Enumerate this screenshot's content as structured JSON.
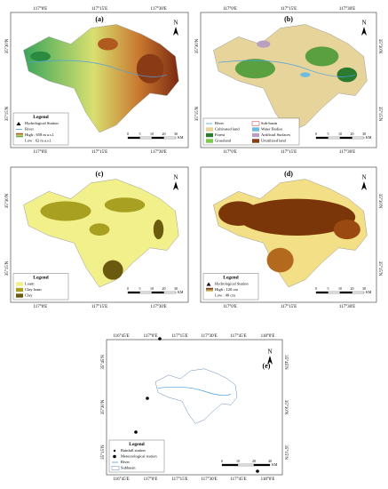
{
  "panels": [
    {
      "label": "(a)",
      "top_ticks": [
        "117°0'E",
        "117°15'E",
        "117°30'E"
      ],
      "bottom_ticks": [
        "117°0'E",
        "117°15'E",
        "117°30'E"
      ],
      "left_ticks": [
        "35°30'N",
        "35°15'N"
      ],
      "legend_title": "Legend",
      "legend_items": [
        "Hydrological Station",
        "River",
        "High : 658 m a.s.l.",
        "Low : 62 m a.s.l."
      ],
      "scale_labels": [
        "0",
        "5",
        "10",
        "20",
        "30"
      ],
      "scale_unit": "KM",
      "north": "N"
    },
    {
      "label": "(b)",
      "top_ticks": [
        "117°0'E",
        "117°15'E",
        "117°30'E"
      ],
      "bottom_ticks": [
        "117°0'E",
        "117°15'E",
        "117°30'E"
      ],
      "left_ticks": [
        "35°30'N",
        "35°15'N"
      ],
      "right_ticks": [
        "35°30'N",
        "35°15'N"
      ],
      "legend_items": [
        "River",
        "Sub-basin",
        "Cultivated land",
        "Water Bodies",
        "Forest",
        "Artificial Surfaces",
        "Grassland",
        "Unutilized land"
      ],
      "scale_labels": [
        "0",
        "5",
        "10",
        "20",
        "30"
      ],
      "scale_unit": "KM",
      "north": "N"
    },
    {
      "label": "(c)",
      "bottom_ticks": [
        "117°0'E",
        "117°15'E",
        "117°30'E"
      ],
      "left_ticks": [
        "35°30'N",
        "35°15'N"
      ],
      "legend_title": "Legend",
      "legend_items": [
        "Loam",
        "Clay loam",
        "Clay"
      ],
      "scale_labels": [
        "0",
        "5",
        "10",
        "20",
        "30"
      ],
      "scale_unit": "KM",
      "north": "N"
    },
    {
      "label": "(d)",
      "bottom_ticks": [
        "117°0'E",
        "117°15'E",
        "117°30'E"
      ],
      "right_ticks": [
        "35°30'N",
        "35°15'N"
      ],
      "legend_title": "Legend",
      "legend_items": [
        "Hydrological Station",
        "High : 120 cm",
        "Low : 40 cm"
      ],
      "scale_labels": [
        "0",
        "5",
        "10",
        "20",
        "30"
      ],
      "scale_unit": "KM",
      "north": "N"
    },
    {
      "label": "(e)",
      "top_ticks": [
        "116°45'E",
        "117°0'E",
        "117°15'E",
        "117°30'E",
        "117°45'E",
        "118°0'E"
      ],
      "bottom_ticks": [
        "116°45'E",
        "117°0'E",
        "117°15'E",
        "117°30'E",
        "117°45'E",
        "118°0'E"
      ],
      "left_ticks": [
        "35°45'N",
        "35°30'N",
        "35°15'N"
      ],
      "right_ticks": [
        "35°45'N",
        "35°30'N",
        "35°15'N"
      ],
      "legend_title": "Legend",
      "legend_items": [
        "Rainfall station",
        "Meteorological station",
        "River",
        "Subbasin"
      ],
      "scale_labels": [
        "0",
        "10",
        "20",
        "40"
      ],
      "scale_unit": "KM",
      "north": "N"
    }
  ]
}
